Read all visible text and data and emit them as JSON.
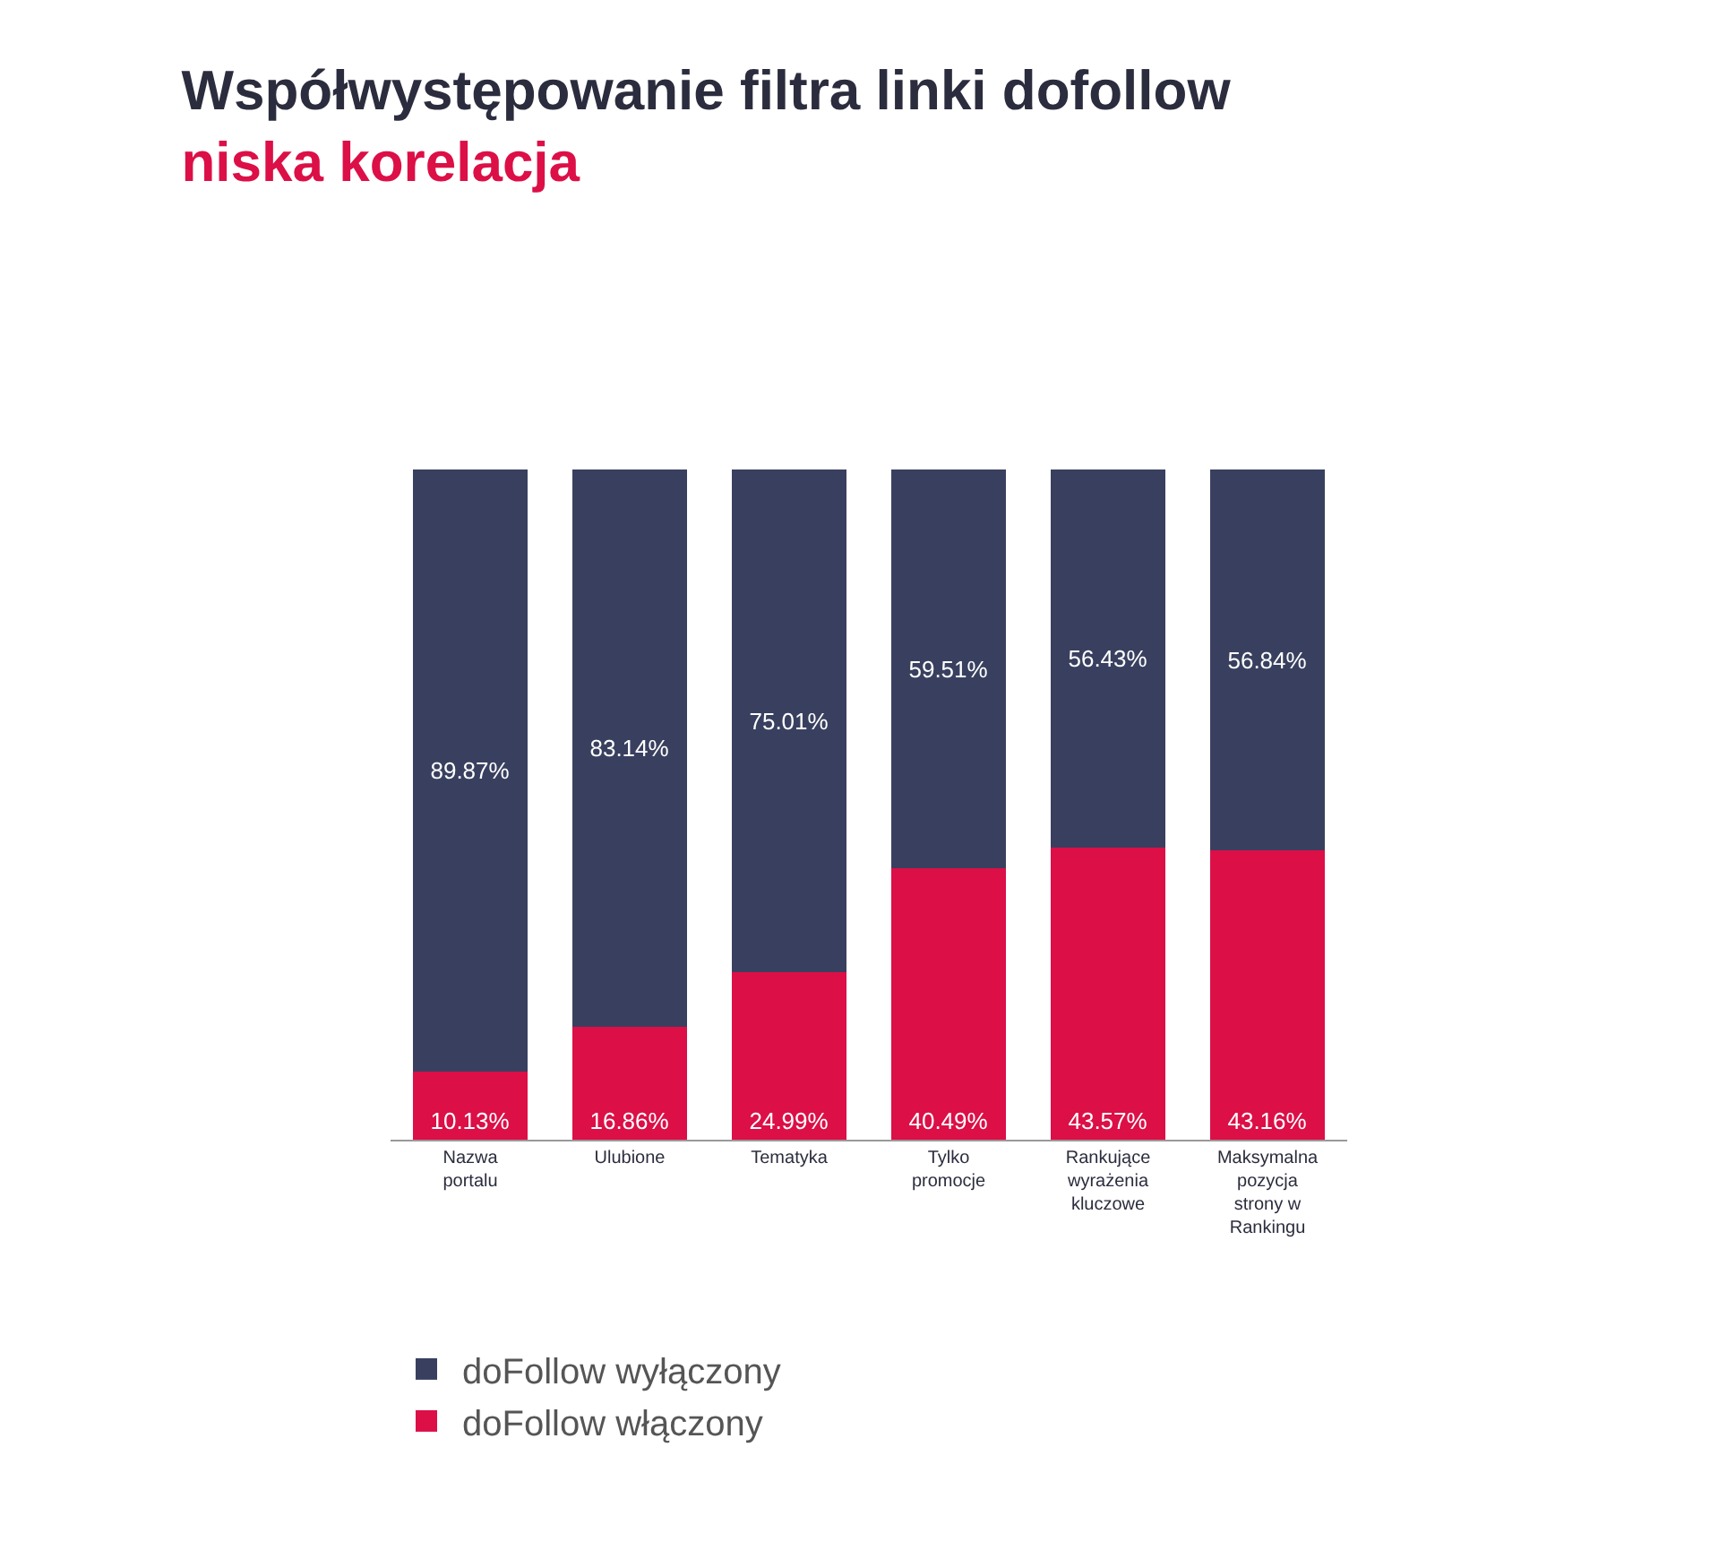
{
  "chart_data": {
    "type": "bar",
    "title": "Współwystępowanie filtra linki dofollow",
    "subtitle": "niska korelacja",
    "stacked": true,
    "legend": "bottom",
    "categories": [
      "Nazwa portalu",
      "Ulubione",
      "Tematyka",
      "Tylko promocje",
      "Rankujące wyrażenia kluczowe",
      "Maksymalna pozycja strony w Rankingu"
    ],
    "series": [
      {
        "name": "doFollow włączony",
        "color": "#dc0f47",
        "values": [
          10.13,
          16.86,
          24.99,
          40.49,
          43.57,
          43.16
        ],
        "value_labels": [
          "10.13%",
          "16.86%",
          "24.99%",
          "40.49%",
          "43.57%",
          "43.16%"
        ]
      },
      {
        "name": "doFollow wyłączony",
        "color": "#39405f",
        "values": [
          89.87,
          83.14,
          75.01,
          59.51,
          56.43,
          56.84
        ],
        "value_labels": [
          "89.87%",
          "83.14%",
          "75.01%",
          "59.51%",
          "56.43%",
          "56.84%"
        ]
      }
    ]
  }
}
